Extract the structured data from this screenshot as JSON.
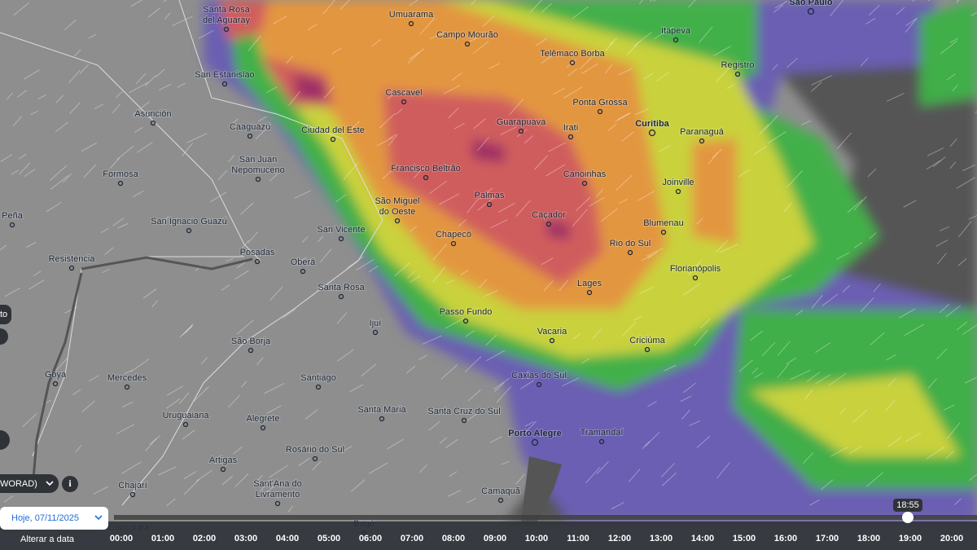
{
  "map": {
    "cities": [
      [
        "Santa Rosa",
        "del Aguaray"
      ],
      "Umuarama",
      "Campo Mourão",
      "Itapeva",
      "São Paulo",
      "Telêmaco Borba",
      "Registro",
      "San Estanislao",
      "Asunción",
      "Cascavel",
      "Ponta Grossa",
      "Curitiba",
      "Paranaguá",
      "Caaguazú",
      "Guarapuava",
      "Irati",
      "Ciudad del Este",
      [
        "San Juan",
        "Nepomuceno"
      ],
      "Formosa",
      "Francisco Beltrão",
      "Canoinhas",
      "Joinville",
      "Peña",
      [
        "São Miguel",
        "do Oeste"
      ],
      "Palmas",
      "Caçador",
      "San Ignacio Guazú",
      "Blumenau",
      "San Vicente",
      "Chapecó",
      "Rio do Sul",
      "Posadas",
      "Resistencia",
      "Oberá",
      "Florianópolis",
      "Lages",
      "Santa Rosa",
      "Passo Fundo",
      "Ijuí",
      "Vacaria",
      "Criciúma",
      "São Borja",
      "Goya",
      "Mercedes",
      "Caxias do Sul",
      "Santiago",
      "Santa Maria",
      "Santa Cruz do Sul",
      "Uruguaiana",
      "Alegrete",
      "Porto Alegre",
      "Tramandaí",
      "Rosário do Sul",
      "Artigas",
      "Chajarí",
      [
        "Sant'Ana do",
        "Livramento"
      ],
      "Camaquã",
      "Concordia",
      "Bagé"
    ]
  },
  "controls": {
    "side_label": "to",
    "layer": "WORAD)"
  },
  "timeline": {
    "date": "Hoje, 07/11/2025",
    "change_date": "Alterar a data",
    "current_time": "18:55",
    "hours": [
      "00:00",
      "01:00",
      "02:00",
      "03:00",
      "04:00",
      "05:00",
      "06:00",
      "07:00",
      "08:00",
      "09:00",
      "10:00",
      "11:00",
      "12:00",
      "13:00",
      "14:00",
      "15:00",
      "16:00",
      "17:00",
      "18:00",
      "19:00",
      "20:00"
    ]
  }
}
